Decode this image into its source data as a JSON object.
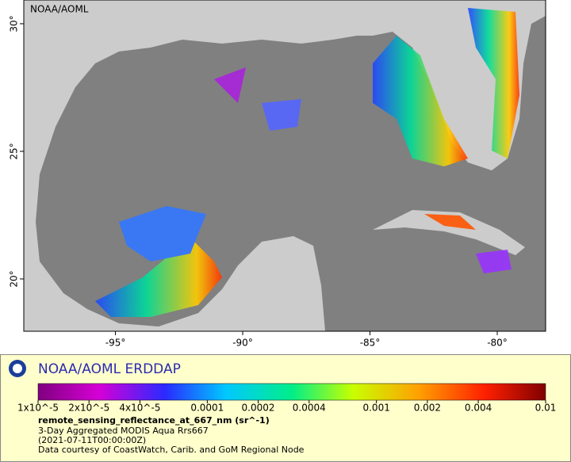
{
  "map": {
    "label": "NOAA/AOML",
    "xticks": [
      {
        "value": -95,
        "label": "-95°"
      },
      {
        "value": -90,
        "label": "-90°"
      },
      {
        "value": -85,
        "label": "-85°"
      },
      {
        "value": -80,
        "label": "-80°"
      }
    ],
    "yticks": [
      {
        "value": 30,
        "label": "30°"
      },
      {
        "value": 25,
        "label": "25°"
      },
      {
        "value": 20,
        "label": "20°"
      }
    ],
    "xlim": [
      -98.6,
      -78.1
    ],
    "ylim": [
      17.95,
      30.93
    ]
  },
  "legend": {
    "title": "NOAA/AOML ERDDAP",
    "colorbar": {
      "log": true,
      "lim": [
        1e-05,
        0.01
      ],
      "ticks": [
        {
          "value": 1e-05,
          "label": "1x10^-5"
        },
        {
          "value": 2e-05,
          "label": "2x10^-5"
        },
        {
          "value": 4e-05,
          "label": "4x10^-5"
        },
        0.0001,
        0.0002,
        0.0004,
        0.001,
        0.002,
        0.004,
        0.01
      ]
    },
    "variable": "remote_sensing_reflectance_at_667_nm (sr^-1)",
    "lines": [
      "3-Day Aggregated MODIS Aqua Rrs667",
      "(2021-07-11T00:00:00Z)",
      "Data courtesy of CoastWatch, Carib. and GoM Regional Node"
    ]
  }
}
